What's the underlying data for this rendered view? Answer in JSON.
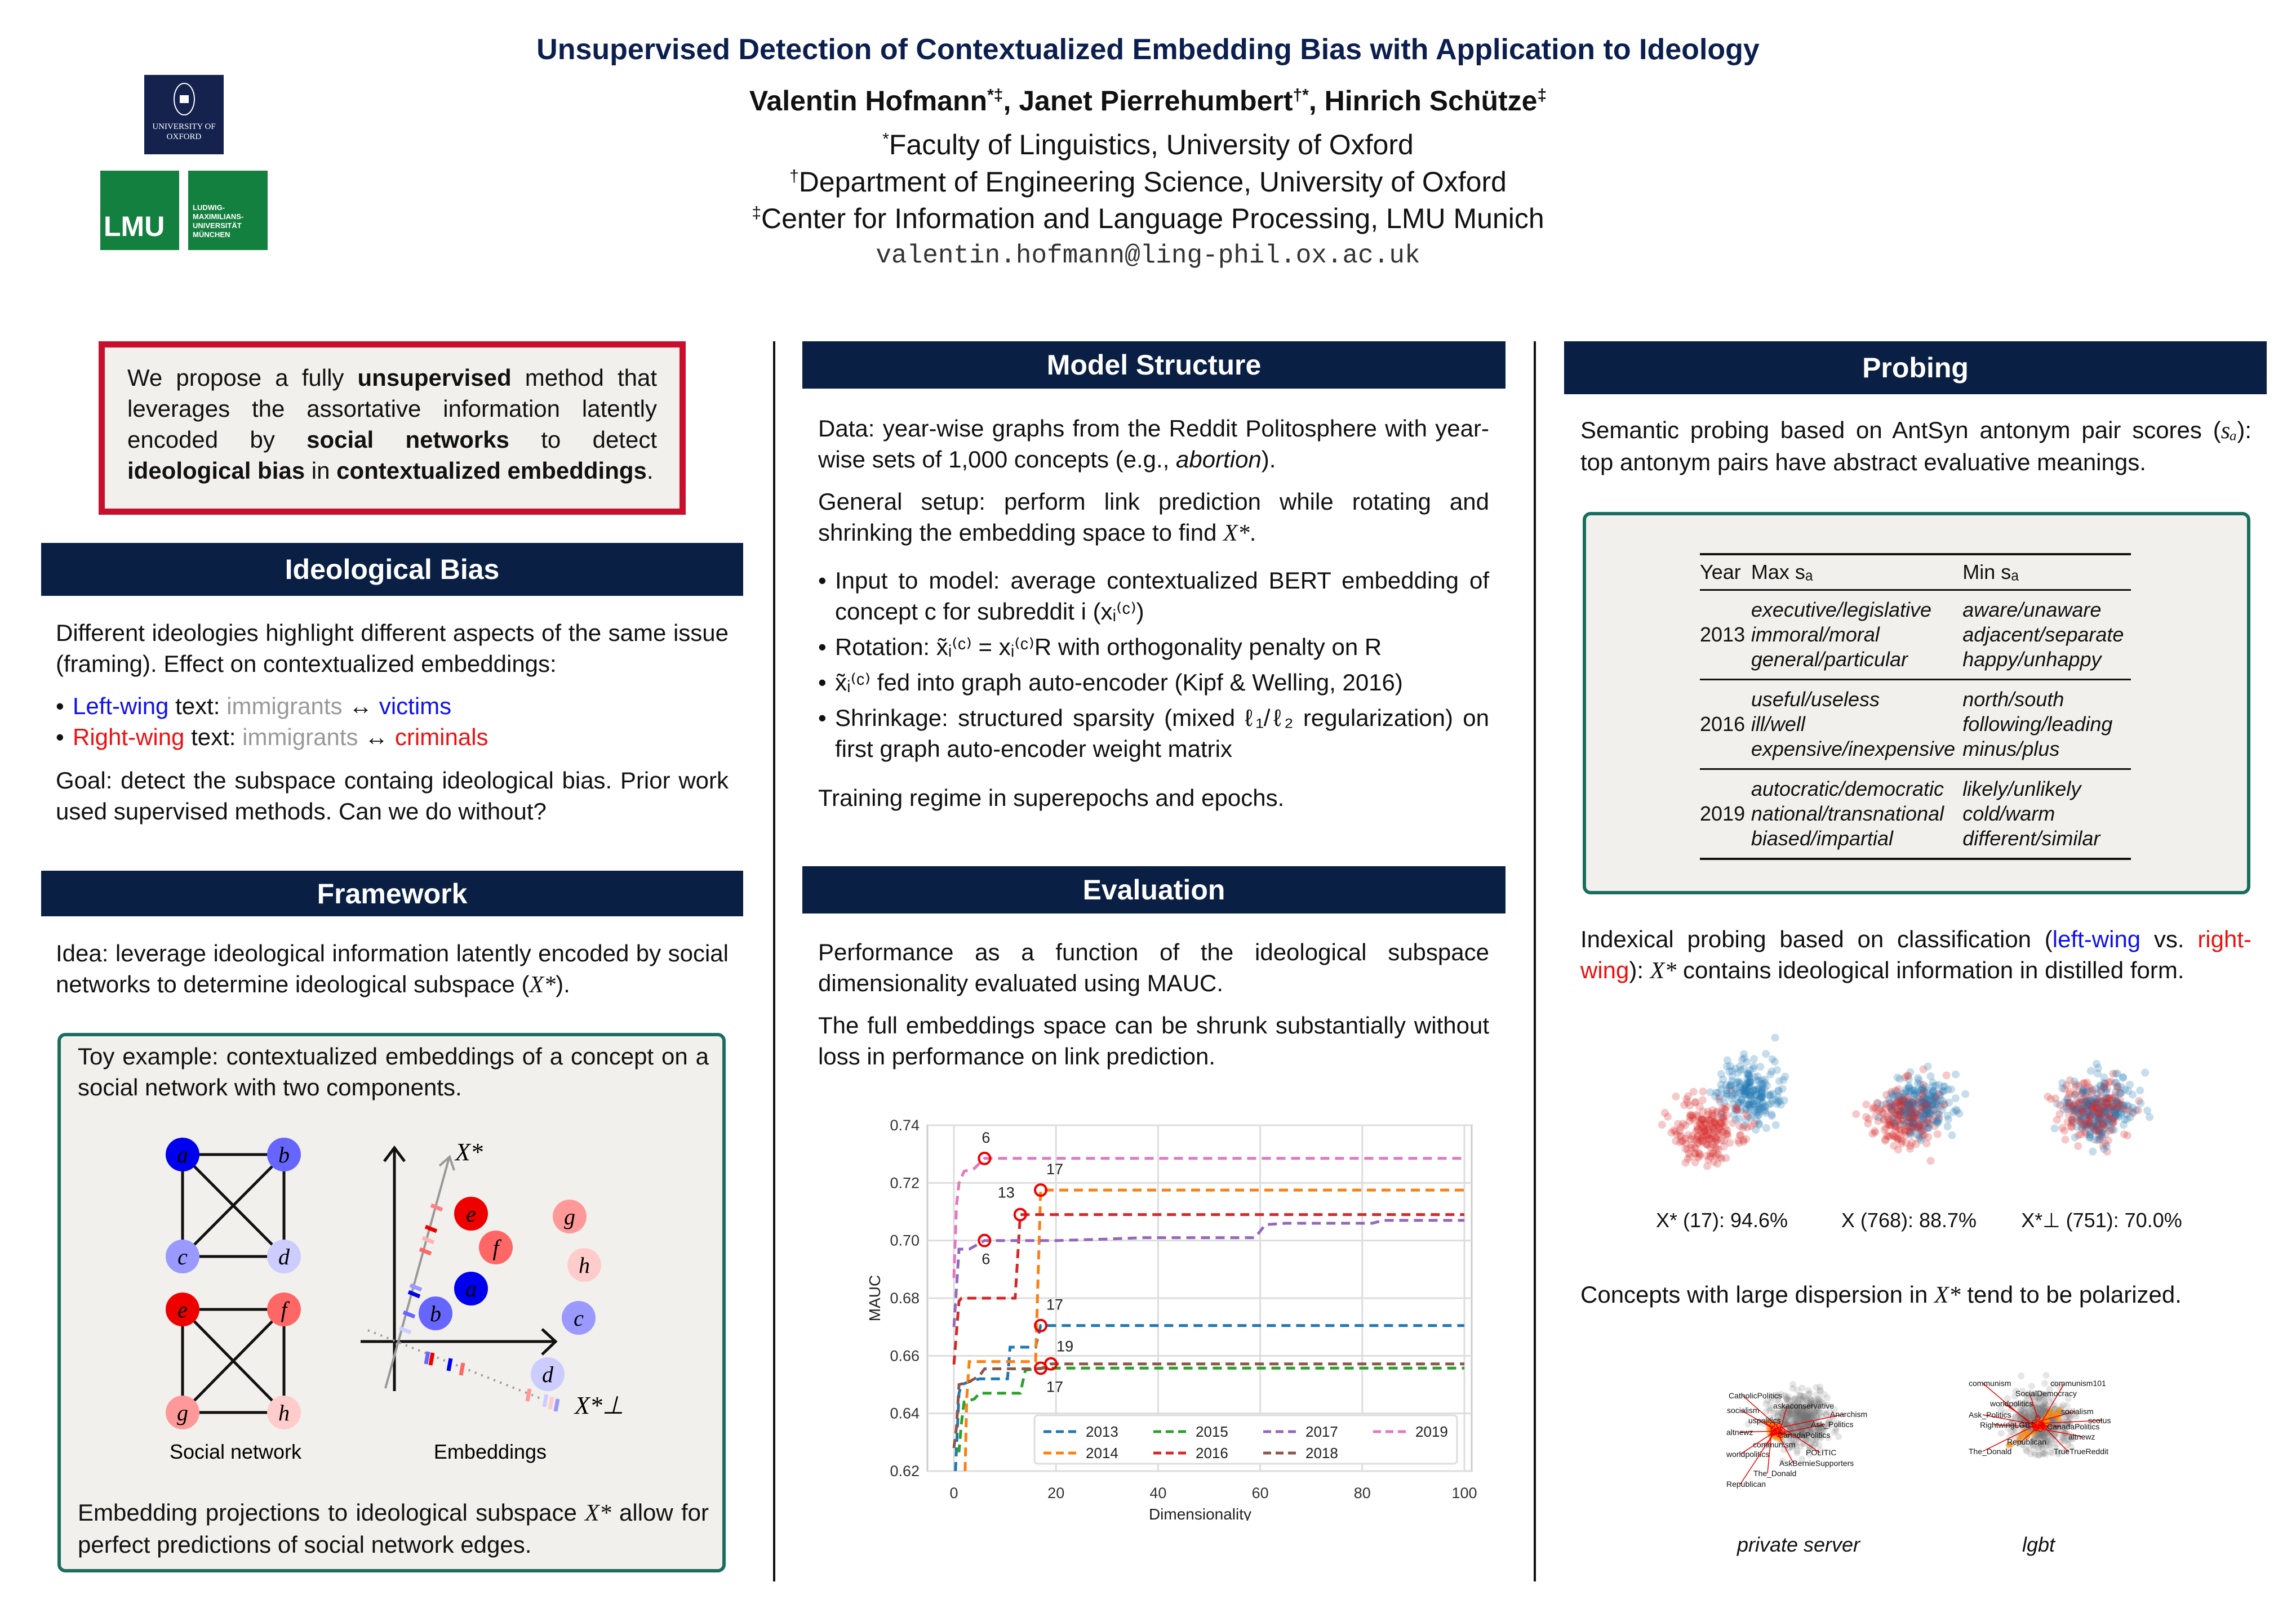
{
  "header": {
    "title": "Unsupervised Detection of Contextualized Embedding Bias with Application to Ideology",
    "authors": [
      {
        "name": "Valentin Hofmann",
        "marks": "*‡"
      },
      {
        "name": ", Janet Pierrehumbert",
        "marks": "†*"
      },
      {
        "name": ", Hinrich Schütze",
        "marks": "‡"
      }
    ],
    "affiliations": [
      {
        "mark": "*",
        "text": "Faculty of Linguistics, University of Oxford"
      },
      {
        "mark": "†",
        "text": "Department of Engineering Science, University of Oxford"
      },
      {
        "mark": "‡",
        "text": "Center for Information and Language Processing, LMU Munich"
      }
    ],
    "email": "valentin.hofmann@ling-phil.ox.ac.uk",
    "logos": {
      "oxford": "UNIVERSITY OF OXFORD",
      "lmu": "LMU",
      "lmu_text": "LUDWIG-MAXIMILIANS-UNIVERSITÄT MÜNCHEN"
    }
  },
  "abstract": {
    "t1": "We propose a fully ",
    "b1": "unsupervised",
    "t2": " method that leverages the assortative information latently encoded by ",
    "b2": "social networks",
    "t3": " to detect ",
    "b3": "ideological bias",
    "t4": " in ",
    "b4": "contextualized embeddings",
    "t5": "."
  },
  "ideological_bias": {
    "heading": "Ideological Bias",
    "p1": "Different ideologies highlight different aspects of the same issue (framing). Effect on contextualized embeddings:",
    "left": {
      "label": "Left-wing",
      "mid": " text: ",
      "a": "immigrants",
      "arrow": " ↔ ",
      "b": "victims"
    },
    "right": {
      "label": "Right-wing",
      "mid": " text: ",
      "a": "immigrants",
      "arrow": " ↔ ",
      "b": "criminals"
    },
    "goal": "Goal: detect the subspace containg ideological bias. Prior work used supervised methods. Can we do without?"
  },
  "framework": {
    "heading": "Framework",
    "idea": "Idea: leverage ideological information latently encoded by social networks to determine ideological subspace (",
    "idea_math": "X*",
    "idea_end": ").",
    "toy_text": "Toy example: contextualized embeddings of a concept on a social network with two components.",
    "nodes": [
      "a",
      "b",
      "c",
      "d",
      "e",
      "f",
      "g",
      "h"
    ],
    "axis_star": "X*",
    "axis_perp": "X*⊥",
    "label_network": "Social network",
    "label_embeddings": "Embeddings",
    "bottom": "Embedding projections to ideological subspace ",
    "bottom_math": "X*",
    "bottom_end": " allow for perfect predictions of social network edges.",
    "colors": {
      "a": "#0000ee",
      "b": "#6666ff",
      "c": "#9999ff",
      "d": "#ccccff",
      "e": "#ee0000",
      "f": "#ff6666",
      "g": "#ff9999",
      "h": "#ffcccc"
    }
  },
  "model": {
    "heading": "Model Structure",
    "p1a": "Data: year-wise graphs from the Reddit Politosphere with year-wise sets of 1,000 concepts (e.g., ",
    "p1i": "abortion",
    "p1b": ").",
    "p2": "General setup:  perform link prediction while rotating and shrinking the embedding space to find ",
    "p2m": "X*",
    "p2e": ".",
    "bullets": [
      "Input to model: average contextualized BERT embedding of concept c for subreddit i (xᵢ⁽ᶜ⁾)",
      "Rotation: x̃ᵢ⁽ᶜ⁾ = xᵢ⁽ᶜ⁾R with orthogonality penalty on R",
      "x̃ᵢ⁽ᶜ⁾ fed into graph auto-encoder (Kipf & Welling, 2016)",
      "Shrinkage: structured sparsity (mixed ℓ₁/ℓ₂ regularization) on first graph auto-encoder weight matrix"
    ],
    "p3": "Training regime in superepochs and epochs."
  },
  "evaluation": {
    "heading": "Evaluation",
    "p1": "Performance as a function of the ideological subspace dimensionality evaluated using MAUC.",
    "p2": "The full embeddings space can be shrunk substantially without loss in performance on link prediction."
  },
  "chart_data": {
    "type": "line",
    "xlabel": "Dimensionality",
    "ylabel": "MAUC",
    "xlim": [
      -3,
      100
    ],
    "ylim": [
      0.62,
      0.74
    ],
    "xticks": [
      "0",
      "20",
      "40",
      "60",
      "80",
      "100"
    ],
    "yticks": [
      "0.62",
      "0.64",
      "0.66",
      "0.68",
      "0.70",
      "0.72",
      "0.74"
    ],
    "grid": true,
    "legend": "bottom-right",
    "series": [
      {
        "name": "2013",
        "color": "#1f77b4",
        "points": [
          [
            0.3,
            0.62
          ],
          [
            1,
            0.647
          ],
          [
            1.5,
            0.65
          ],
          [
            3,
            0.651
          ],
          [
            5,
            0.652
          ],
          [
            10.5,
            0.652
          ],
          [
            11,
            0.663
          ],
          [
            16,
            0.663
          ],
          [
            17,
            0.6705
          ],
          [
            100,
            0.6705
          ]
        ],
        "best": 17
      },
      {
        "name": "2014",
        "color": "#ff7f0e",
        "points": [
          [
            2.2,
            0.62
          ],
          [
            2.5,
            0.645
          ],
          [
            3,
            0.658
          ],
          [
            16,
            0.658
          ],
          [
            17,
            0.7175
          ],
          [
            100,
            0.7175
          ]
        ],
        "best": 17
      },
      {
        "name": "2015",
        "color": "#2ca02c",
        "points": [
          [
            0.5,
            0.627
          ],
          [
            1,
            0.627
          ],
          [
            1.5,
            0.637
          ],
          [
            2,
            0.644
          ],
          [
            4,
            0.645
          ],
          [
            5,
            0.647
          ],
          [
            13,
            0.647
          ],
          [
            14,
            0.655
          ],
          [
            17,
            0.6557
          ],
          [
            100,
            0.6557
          ]
        ],
        "best": 17
      },
      {
        "name": "2016",
        "color": "#d62728",
        "points": [
          [
            0,
            0.657
          ],
          [
            1,
            0.679
          ],
          [
            1.5,
            0.68
          ],
          [
            12,
            0.68
          ],
          [
            13,
            0.709
          ],
          [
            100,
            0.709
          ]
        ],
        "best": 13
      },
      {
        "name": "2017",
        "color": "#9467bd",
        "points": [
          [
            0,
            0.67
          ],
          [
            1,
            0.697
          ],
          [
            3,
            0.697
          ],
          [
            6,
            0.7
          ],
          [
            20,
            0.7
          ],
          [
            30,
            0.7005
          ],
          [
            37,
            0.701
          ],
          [
            59,
            0.701
          ],
          [
            61,
            0.7055
          ],
          [
            65,
            0.706
          ],
          [
            82,
            0.706
          ],
          [
            84,
            0.707
          ],
          [
            100,
            0.707
          ]
        ],
        "best": 6
      },
      {
        "name": "2018",
        "color": "#8c564b",
        "points": [
          [
            0,
            0.628
          ],
          [
            0.5,
            0.635
          ],
          [
            1,
            0.65
          ],
          [
            3,
            0.651
          ],
          [
            5,
            0.653
          ],
          [
            6,
            0.6555
          ],
          [
            17,
            0.6555
          ],
          [
            19,
            0.6572
          ],
          [
            100,
            0.6572
          ]
        ],
        "best": 19
      },
      {
        "name": "2019",
        "color": "#e377c2",
        "points": [
          [
            0,
            0.687
          ],
          [
            0.5,
            0.712
          ],
          [
            1,
            0.72
          ],
          [
            2,
            0.724
          ],
          [
            4,
            0.725
          ],
          [
            6,
            0.7285
          ],
          [
            100,
            0.7285
          ]
        ],
        "best": 6
      }
    ],
    "annotations": [
      {
        "label": "6",
        "x": 6,
        "y": 0.7285
      },
      {
        "label": "17",
        "x": 17,
        "y": 0.7175
      },
      {
        "label": "13",
        "x": 13,
        "y": 0.709
      },
      {
        "label": "6",
        "x": 6,
        "y": 0.7
      },
      {
        "label": "17",
        "x": 17,
        "y": 0.6705
      },
      {
        "label": "19",
        "x": 19,
        "y": 0.6572
      },
      {
        "label": "17",
        "x": 17,
        "y": 0.6557
      }
    ]
  },
  "probing": {
    "heading": "Probing",
    "p1": "Semantic probing based on AntSyn antonym pair scores (",
    "p1m": "sₐ",
    "p1e": "): top antonym pairs have abstract evaluative meanings.",
    "table": {
      "headers": [
        "Year",
        "Max sₐ",
        "Min sₐ"
      ],
      "groups": [
        {
          "year": "2013",
          "max": [
            "executive/legislative",
            "immoral/moral",
            "general/particular"
          ],
          "min": [
            "aware/unaware",
            "adjacent/separate",
            "happy/unhappy"
          ]
        },
        {
          "year": "2016",
          "max": [
            "useful/useless",
            "ill/well",
            "expensive/inexpensive"
          ],
          "min": [
            "north/south",
            "following/leading",
            "minus/plus"
          ]
        },
        {
          "year": "2019",
          "max": [
            "autocratic/democratic",
            "national/transnational",
            "biased/impartial"
          ],
          "min": [
            "likely/unlikely",
            "cold/warm",
            "different/similar"
          ]
        }
      ]
    },
    "p2a": "Indexical probing based on classification (",
    "p2l": "left-wing",
    "p2v": " vs. ",
    "p2r": "right-wing",
    "p2b": "): ",
    "p2m": "X*",
    "p2e": " contains ideological information in distilled form.",
    "scatter_captions": [
      "X* (17): 94.6%",
      "X (768): 88.7%",
      "X*⊥ (751): 70.0%"
    ],
    "scatter_separation": [
      0.9,
      0.3,
      0.1
    ],
    "p3a": "Concepts with large dispersion in ",
    "p3m": "X*",
    "p3e": " tend to be polarized.",
    "clusters": [
      {
        "caption": "private server",
        "labels": [
          "CatholicPolitics",
          "askaconservative",
          "socialism",
          "uspolitics",
          "Anarchism",
          "Ask_Politics",
          "altnewz",
          "CanadaPolitics",
          "communism",
          "worldpolitics",
          "POLITIC",
          "AskBernieSupporters",
          "The_Donald",
          "Republican"
        ]
      },
      {
        "caption": "lgbt",
        "labels": [
          "communism",
          "communism101",
          "SocialDemocracy",
          "worldpolitics",
          "socialism",
          "Ask_Politics",
          "scotus",
          "RightwingLGBT",
          "CanadaPolitics",
          "altnewz",
          "Republican",
          "The_Donald",
          "TrueTrueReddit"
        ]
      }
    ]
  }
}
